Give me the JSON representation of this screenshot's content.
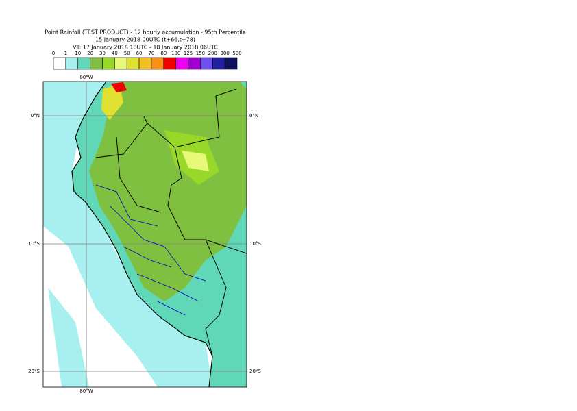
{
  "header": {
    "lines": [
      "Point Rainfall (TEST PRODUCT) - 12 hourly accumulation - 95th Percentile",
      "15 January 2018 00UTC (t+66,t+78)",
      "VT: 17 January 2018 18UTC - 18 January 2018 06UTC"
    ]
  },
  "legend": {
    "bounds": [
      "0",
      "1",
      "10",
      "20",
      "30",
      "40",
      "50",
      "60",
      "70",
      "80",
      "100",
      "125",
      "150",
      "200",
      "300",
      "500"
    ],
    "colors": [
      "#ffffff",
      "#a8f0f0",
      "#60d8b8",
      "#80c040",
      "#98d828",
      "#e8f878",
      "#e0e030",
      "#f0c020",
      "#f89018",
      "#f00000",
      "#f000f0",
      "#a000d0",
      "#7050f0",
      "#2020a0",
      "#101060"
    ]
  },
  "map": {
    "lat_labels": [
      "0°N",
      "10°S",
      "20°S"
    ],
    "lon_labels": [
      "80°W",
      "80°W"
    ]
  }
}
